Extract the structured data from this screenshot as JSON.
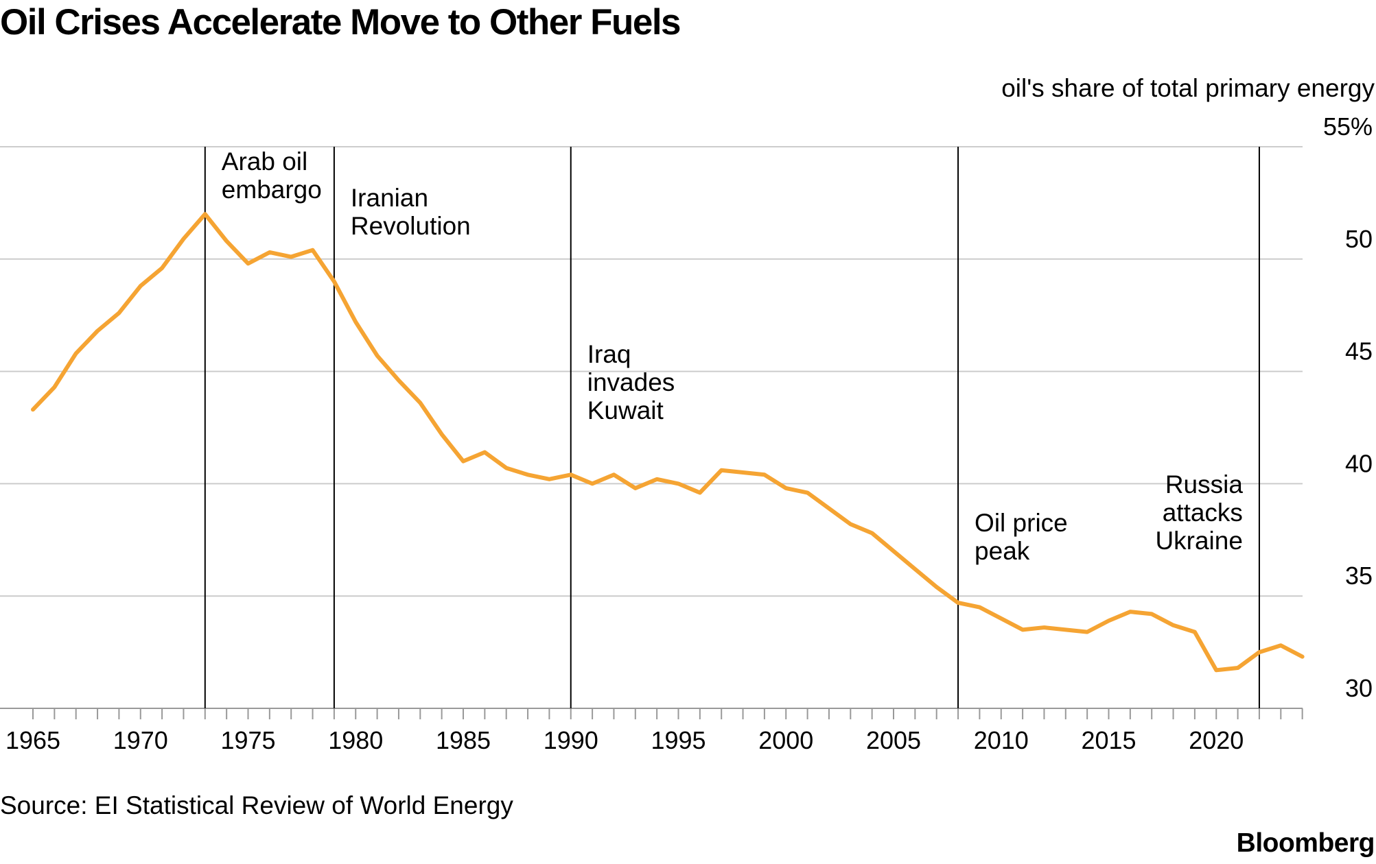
{
  "title": "Oil Crises Accelerate Move to Other Fuels",
  "source": "Source: EI Statistical Review of World Energy",
  "brand": "Bloomberg",
  "colors": {
    "line": "#F5A433",
    "grid": "#cccccc",
    "event_line": "#000000"
  },
  "chart_data": {
    "type": "line",
    "title": "Oil Crises Accelerate Move to Other Fuels",
    "ylabel": "oil's share of total primary energy",
    "xlabel": "",
    "xlim": [
      1965,
      2024
    ],
    "ylim": [
      30,
      55
    ],
    "y_ticks": [
      30,
      35,
      40,
      45,
      50,
      55
    ],
    "y_tick_labels": [
      "30",
      "35",
      "40",
      "45",
      "50",
      "55%"
    ],
    "x_ticks": [
      1965,
      1970,
      1975,
      1980,
      1985,
      1990,
      1995,
      2000,
      2005,
      2010,
      2015,
      2020
    ],
    "x_tick_labels": [
      "1965",
      "1970",
      "1975",
      "1980",
      "1985",
      "1990",
      "1995",
      "2000",
      "2005",
      "2010",
      "2015",
      "2020"
    ],
    "grid": true,
    "series": [
      {
        "name": "oil's share of total primary energy",
        "x": [
          1965,
          1966,
          1967,
          1968,
          1969,
          1970,
          1971,
          1972,
          1973,
          1974,
          1975,
          1976,
          1977,
          1978,
          1979,
          1980,
          1981,
          1982,
          1983,
          1984,
          1985,
          1986,
          1987,
          1988,
          1989,
          1990,
          1991,
          1992,
          1993,
          1994,
          1995,
          1996,
          1997,
          1998,
          1999,
          2000,
          2001,
          2002,
          2003,
          2004,
          2005,
          2006,
          2007,
          2008,
          2009,
          2010,
          2011,
          2012,
          2013,
          2014,
          2015,
          2016,
          2017,
          2018,
          2019,
          2020,
          2021,
          2022,
          2023,
          2024
        ],
        "values": [
          43.3,
          44.3,
          45.8,
          46.8,
          47.6,
          48.8,
          49.6,
          50.9,
          52.0,
          50.8,
          49.8,
          50.3,
          50.1,
          50.4,
          49.0,
          47.2,
          45.7,
          44.6,
          43.6,
          42.2,
          41.0,
          41.4,
          40.7,
          40.4,
          40.2,
          40.4,
          40.0,
          40.4,
          39.8,
          40.2,
          40.0,
          39.6,
          40.6,
          40.5,
          40.4,
          39.8,
          39.6,
          38.9,
          38.2,
          37.8,
          37.0,
          36.2,
          35.4,
          34.7,
          34.5,
          34.0,
          33.5,
          33.6,
          33.5,
          33.4,
          33.9,
          34.3,
          34.2,
          33.7,
          33.4,
          31.7,
          31.8,
          32.5,
          32.8,
          32.3
        ]
      }
    ],
    "events": [
      {
        "year": 1973,
        "label": [
          "Arab oil",
          "embargo"
        ],
        "align": "left"
      },
      {
        "year": 1979,
        "label": [
          "Iranian",
          "Revolution"
        ],
        "align": "left"
      },
      {
        "year": 1990,
        "label": [
          "Iraq",
          "invades",
          "Kuwait"
        ],
        "align": "left"
      },
      {
        "year": 2008,
        "label": [
          "Oil price",
          "peak"
        ],
        "align": "left"
      },
      {
        "year": 2022,
        "label": [
          "Russia",
          "attacks",
          "Ukraine"
        ],
        "align": "right"
      }
    ]
  }
}
